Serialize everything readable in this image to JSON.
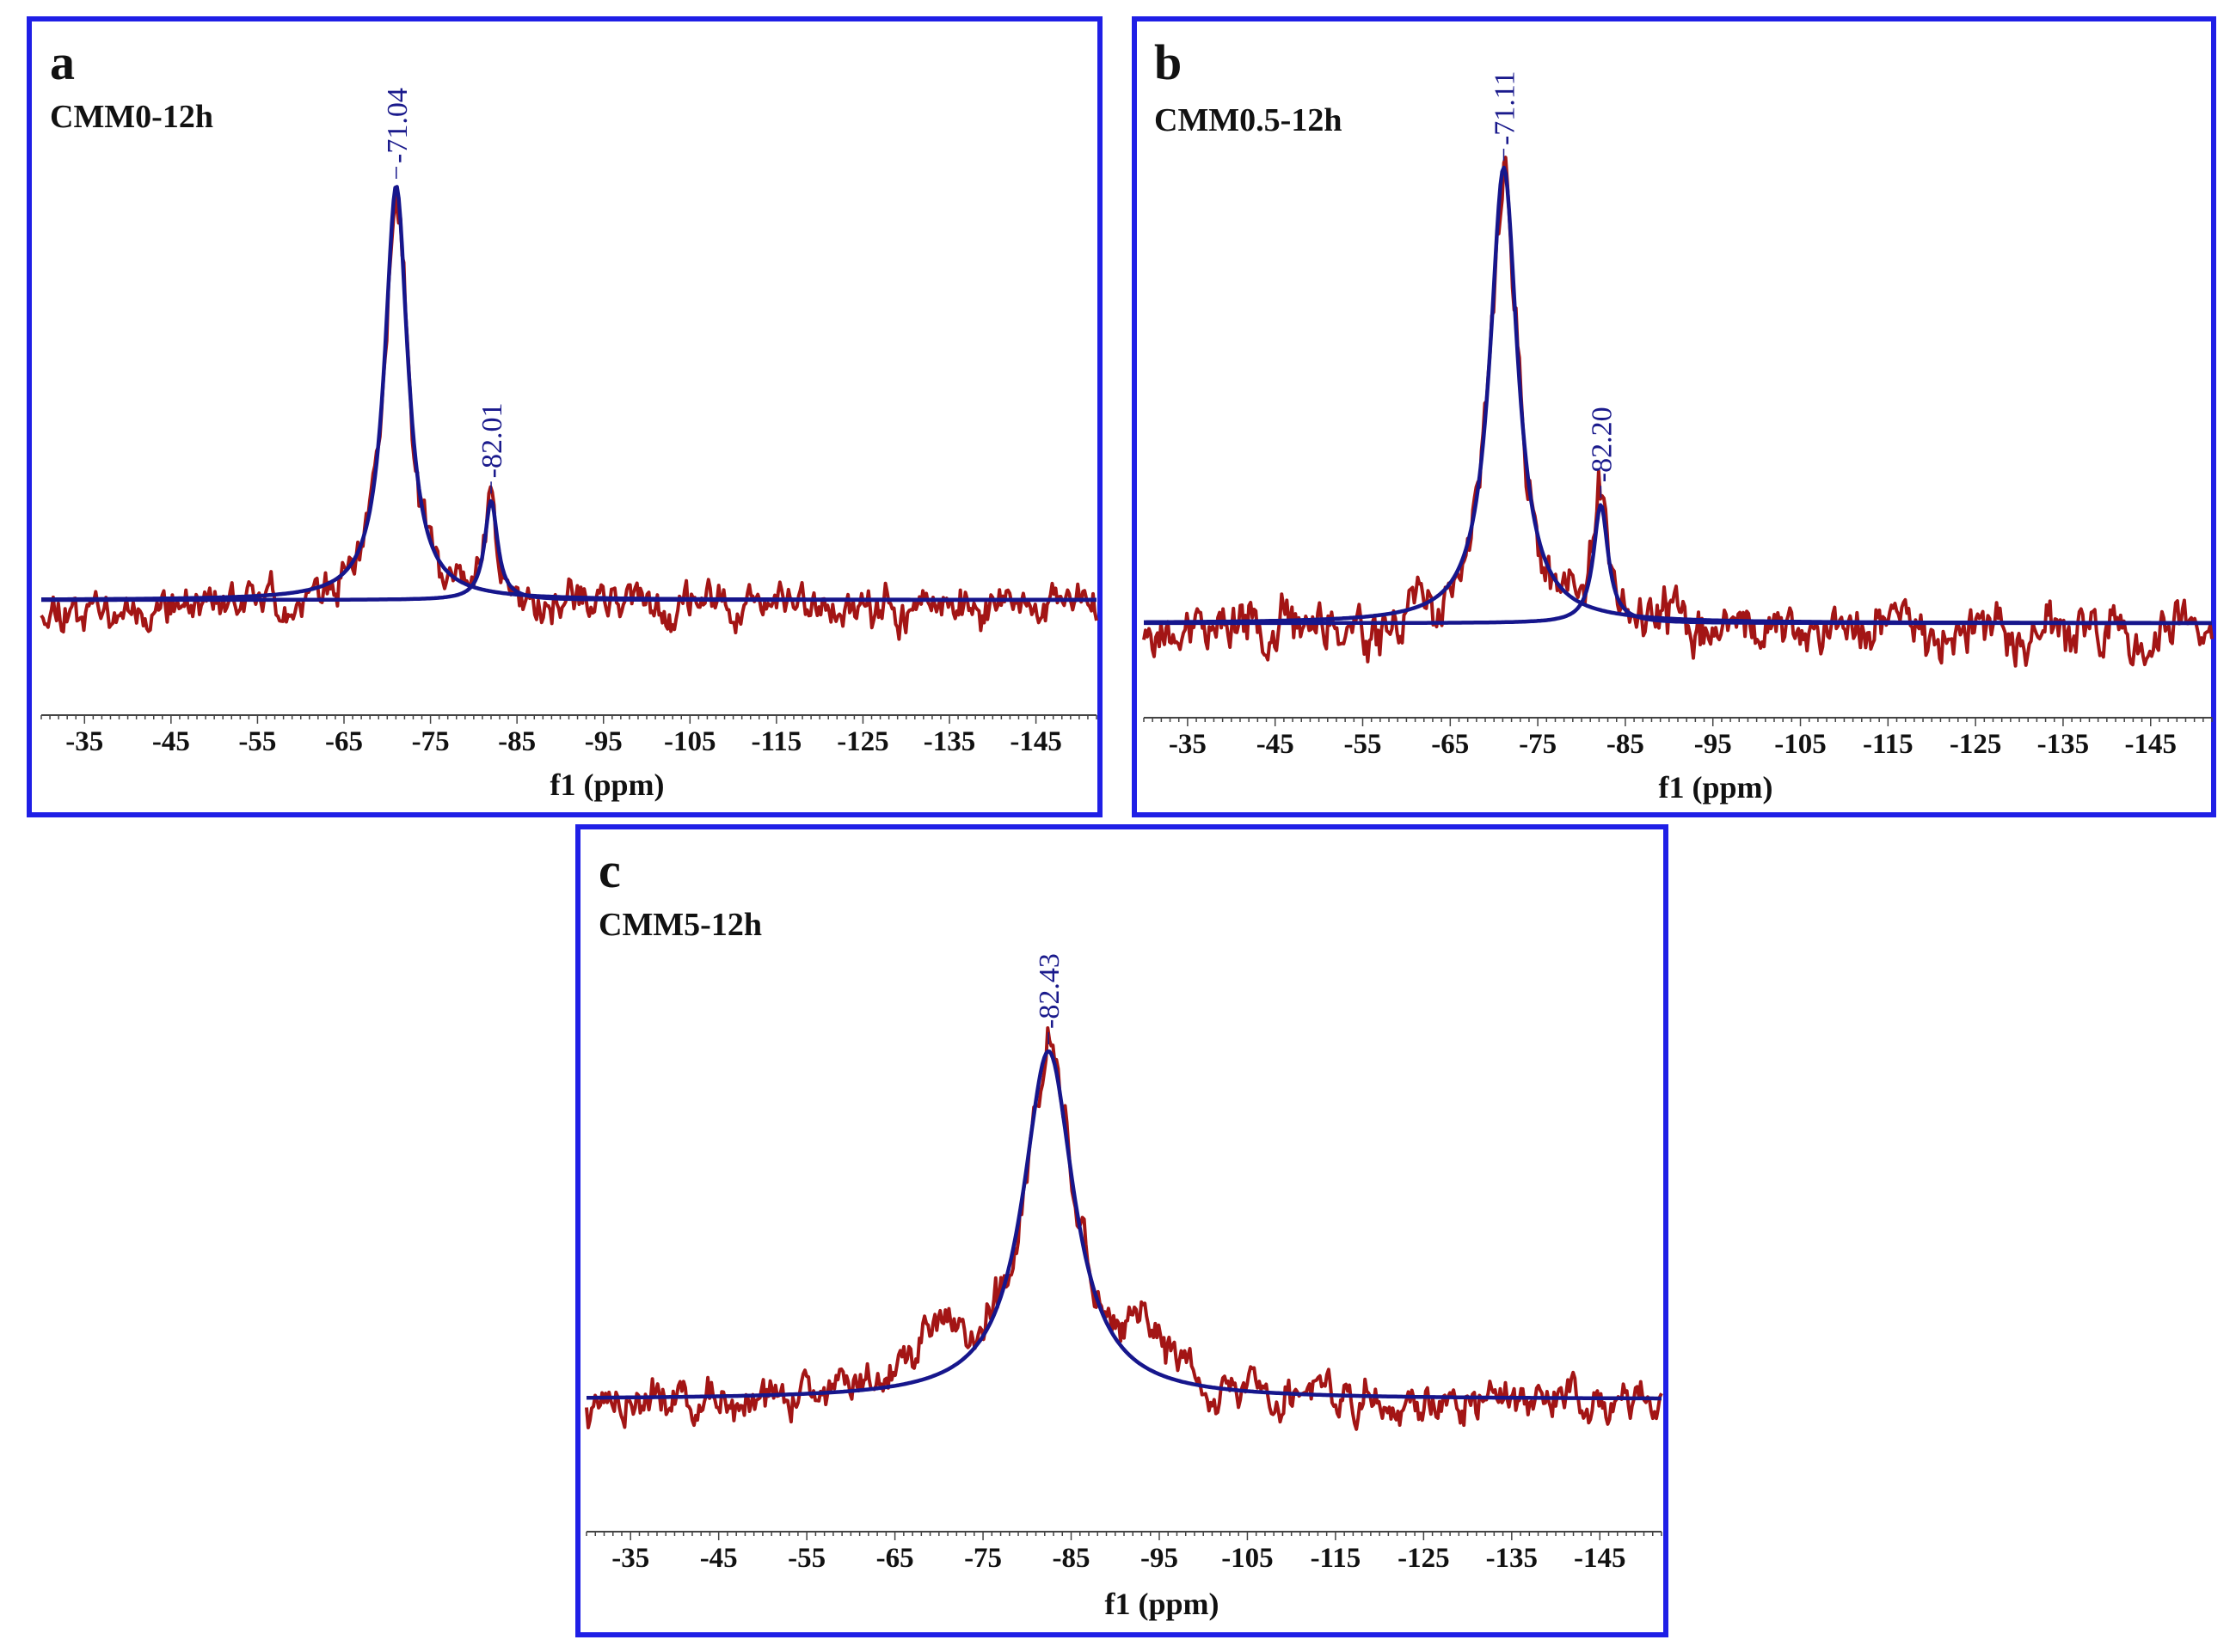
{
  "chart_data": [
    {
      "type": "line",
      "panel": "a",
      "title": "CMM0-12h",
      "xlabel": "f1 (ppm)",
      "xlim": [
        -30,
        -152
      ],
      "xticks": [
        -35,
        -45,
        -55,
        -65,
        -75,
        -85,
        -95,
        -105,
        -115,
        -125,
        -135,
        -145
      ],
      "peaks": [
        {
          "label": "-71.04",
          "position": -71.04,
          "height": 1.0,
          "width": 1.6
        },
        {
          "label": "-82.01",
          "position": -82.01,
          "height": 0.24,
          "width": 0.9
        }
      ],
      "series": [
        {
          "name": "experimental",
          "color": "#a31515"
        },
        {
          "name": "fit",
          "color": "#16168c"
        }
      ],
      "noise": 0.035,
      "seed": 11
    },
    {
      "type": "line",
      "panel": "b",
      "title": "CMM0.5-12h",
      "xlabel": "f1 (ppm)",
      "xlim": [
        -30,
        -152
      ],
      "xticks": [
        -35,
        -45,
        -55,
        -65,
        -75,
        -85,
        -95,
        -105,
        -115,
        -125,
        -135,
        -145
      ],
      "peaks": [
        {
          "label": "-71.11",
          "position": -71.11,
          "height": 1.0,
          "width": 1.9
        },
        {
          "label": "-82.20",
          "position": -82.2,
          "height": 0.26,
          "width": 1.0
        }
      ],
      "series": [
        {
          "name": "experimental",
          "color": "#a31515"
        },
        {
          "name": "fit",
          "color": "#16168c"
        }
      ],
      "noise": 0.04,
      "seed": 23
    },
    {
      "type": "line",
      "panel": "c",
      "title": "CMM5-12h",
      "xlabel": "f1 (ppm)",
      "xlim": [
        -30,
        -152
      ],
      "xticks": [
        -35,
        -45,
        -55,
        -65,
        -75,
        -85,
        -95,
        -105,
        -115,
        -125,
        -135,
        -145
      ],
      "peaks": [
        {
          "label": "-82.43",
          "position": -82.43,
          "height": 1.0,
          "width": 3.5
        }
      ],
      "shoulders": [
        {
          "position": -69,
          "height": 0.17,
          "width": 3
        },
        {
          "position": -94,
          "height": 0.13,
          "width": 3
        }
      ],
      "series": [
        {
          "name": "experimental",
          "color": "#a31515"
        },
        {
          "name": "fit",
          "color": "#16168c"
        }
      ],
      "noise": 0.045,
      "seed": 37
    }
  ]
}
